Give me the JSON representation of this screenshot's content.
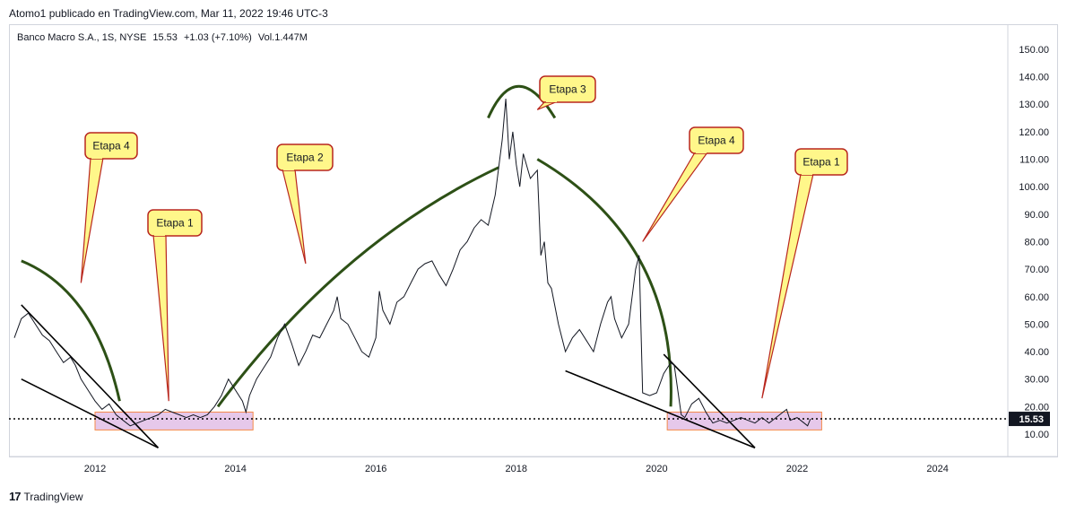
{
  "header": {
    "published": "Atomo1 publicado en TradingView.com, Mar 11, 2022 19:46 UTC-3"
  },
  "legend": {
    "symbol": "Banco Macro S.A., 1S, NYSE",
    "last": "15.53",
    "change": "+1.03 (+7.10%)",
    "volume": "Vol.1.447M"
  },
  "footer": {
    "brand": "TradingView"
  },
  "colors": {
    "price_line": "#131722",
    "arc": "#2d5016",
    "callout_fill": "#fff78a",
    "callout_border": "#b8261e",
    "base_box_fill": "#e6c8ea",
    "base_box_border": "#f48a4a",
    "last_label_bg": "#131722"
  },
  "chart_data": {
    "type": "line",
    "title": "Banco Macro S.A., 1S, NYSE",
    "xlabel": "",
    "ylabel": "",
    "ylim": [
      0,
      160
    ],
    "xlim": [
      2010.85,
      2025.0
    ],
    "x_ticks": [
      "2012",
      "2014",
      "2016",
      "2018",
      "2020",
      "2022",
      "2024"
    ],
    "y_ticks": [
      "10.00",
      "20.00",
      "30.00",
      "40.00",
      "50.00",
      "60.00",
      "70.00",
      "80.00",
      "90.00",
      "100.00",
      "110.00",
      "120.00",
      "130.00",
      "140.00",
      "150.00"
    ],
    "last_price": 15.53,
    "last_price_label": "15.53",
    "series": [
      {
        "values": [
          [
            2010.85,
            45
          ],
          [
            2010.95,
            52
          ],
          [
            2011.05,
            54
          ],
          [
            2011.15,
            50
          ],
          [
            2011.25,
            46
          ],
          [
            2011.35,
            44
          ],
          [
            2011.45,
            40
          ],
          [
            2011.55,
            36
          ],
          [
            2011.65,
            38
          ],
          [
            2011.72,
            35
          ],
          [
            2011.8,
            30
          ],
          [
            2011.9,
            26
          ],
          [
            2012.0,
            22
          ],
          [
            2012.1,
            19
          ],
          [
            2012.2,
            21
          ],
          [
            2012.3,
            17
          ],
          [
            2012.4,
            15
          ],
          [
            2012.5,
            13
          ],
          [
            2012.6,
            14
          ],
          [
            2012.7,
            15
          ],
          [
            2012.8,
            16
          ],
          [
            2012.9,
            17
          ],
          [
            2013.0,
            19
          ],
          [
            2013.1,
            18
          ],
          [
            2013.2,
            17
          ],
          [
            2013.3,
            16
          ],
          [
            2013.4,
            17
          ],
          [
            2013.5,
            16
          ],
          [
            2013.6,
            17
          ],
          [
            2013.7,
            20
          ],
          [
            2013.8,
            24
          ],
          [
            2013.9,
            30
          ],
          [
            2014.0,
            26
          ],
          [
            2014.1,
            22
          ],
          [
            2014.15,
            18
          ],
          [
            2014.2,
            24
          ],
          [
            2014.3,
            30
          ],
          [
            2014.4,
            34
          ],
          [
            2014.5,
            38
          ],
          [
            2014.6,
            45
          ],
          [
            2014.7,
            50
          ],
          [
            2014.8,
            43
          ],
          [
            2014.9,
            35
          ],
          [
            2015.0,
            40
          ],
          [
            2015.1,
            46
          ],
          [
            2015.2,
            45
          ],
          [
            2015.3,
            50
          ],
          [
            2015.4,
            55
          ],
          [
            2015.45,
            60
          ],
          [
            2015.5,
            52
          ],
          [
            2015.6,
            50
          ],
          [
            2015.7,
            45
          ],
          [
            2015.8,
            40
          ],
          [
            2015.9,
            38
          ],
          [
            2016.0,
            45
          ],
          [
            2016.05,
            62
          ],
          [
            2016.1,
            55
          ],
          [
            2016.2,
            50
          ],
          [
            2016.3,
            58
          ],
          [
            2016.4,
            60
          ],
          [
            2016.5,
            65
          ],
          [
            2016.6,
            70
          ],
          [
            2016.7,
            72
          ],
          [
            2016.8,
            73
          ],
          [
            2016.9,
            68
          ],
          [
            2017.0,
            64
          ],
          [
            2017.1,
            70
          ],
          [
            2017.2,
            77
          ],
          [
            2017.3,
            80
          ],
          [
            2017.4,
            85
          ],
          [
            2017.5,
            88
          ],
          [
            2017.6,
            86
          ],
          [
            2017.7,
            97
          ],
          [
            2017.8,
            117
          ],
          [
            2017.85,
            132
          ],
          [
            2017.9,
            110
          ],
          [
            2017.95,
            120
          ],
          [
            2018.0,
            108
          ],
          [
            2018.05,
            100
          ],
          [
            2018.1,
            112
          ],
          [
            2018.2,
            103
          ],
          [
            2018.3,
            106
          ],
          [
            2018.35,
            75
          ],
          [
            2018.4,
            80
          ],
          [
            2018.45,
            65
          ],
          [
            2018.5,
            63
          ],
          [
            2018.6,
            50
          ],
          [
            2018.7,
            40
          ],
          [
            2018.8,
            45
          ],
          [
            2018.9,
            48
          ],
          [
            2019.0,
            44
          ],
          [
            2019.1,
            40
          ],
          [
            2019.2,
            50
          ],
          [
            2019.3,
            58
          ],
          [
            2019.35,
            60
          ],
          [
            2019.4,
            52
          ],
          [
            2019.5,
            45
          ],
          [
            2019.6,
            50
          ],
          [
            2019.7,
            70
          ],
          [
            2019.75,
            75
          ],
          [
            2019.8,
            25
          ],
          [
            2019.9,
            24
          ],
          [
            2020.0,
            25
          ],
          [
            2020.1,
            32
          ],
          [
            2020.2,
            36
          ],
          [
            2020.25,
            35
          ],
          [
            2020.3,
            26
          ],
          [
            2020.35,
            17
          ],
          [
            2020.4,
            16
          ],
          [
            2020.5,
            21
          ],
          [
            2020.6,
            23
          ],
          [
            2020.7,
            18
          ],
          [
            2020.8,
            14
          ],
          [
            2020.9,
            15
          ],
          [
            2021.0,
            14
          ],
          [
            2021.1,
            15
          ],
          [
            2021.2,
            16
          ],
          [
            2021.3,
            15
          ],
          [
            2021.4,
            14
          ],
          [
            2021.5,
            16
          ],
          [
            2021.6,
            14
          ],
          [
            2021.7,
            16
          ],
          [
            2021.8,
            18
          ],
          [
            2021.85,
            19
          ],
          [
            2021.9,
            15
          ],
          [
            2022.0,
            16
          ],
          [
            2022.1,
            14
          ],
          [
            2022.15,
            13
          ],
          [
            2022.19,
            15.53
          ]
        ]
      }
    ]
  },
  "annotations": {
    "callouts": [
      {
        "label": "Etapa 4",
        "anchor": [
          2011.8,
          65
        ]
      },
      {
        "label": "Etapa 1",
        "anchor": [
          2013.05,
          22
        ]
      },
      {
        "label": "Etapa 2",
        "anchor": [
          2015.0,
          72
        ]
      },
      {
        "label": "Etapa 3",
        "anchor": [
          2018.3,
          128
        ]
      },
      {
        "label": "Etapa 4",
        "anchor": [
          2019.8,
          80
        ]
      },
      {
        "label": "Etapa 1",
        "anchor": [
          2021.5,
          23
        ]
      }
    ],
    "base_zones": [
      {
        "x": [
          2012.0,
          2014.25
        ],
        "y": [
          11.5,
          18
        ]
      },
      {
        "x": [
          2020.15,
          2022.35
        ],
        "y": [
          11.5,
          18
        ]
      }
    ],
    "trendlines": [
      [
        [
          2010.95,
          57
        ],
        [
          2012.9,
          5
        ]
      ],
      [
        [
          2010.95,
          30
        ],
        [
          2012.9,
          5
        ]
      ],
      [
        [
          2020.1,
          39
        ],
        [
          2021.4,
          5
        ]
      ],
      [
        [
          2018.7,
          33
        ],
        [
          2021.4,
          5
        ]
      ]
    ]
  }
}
